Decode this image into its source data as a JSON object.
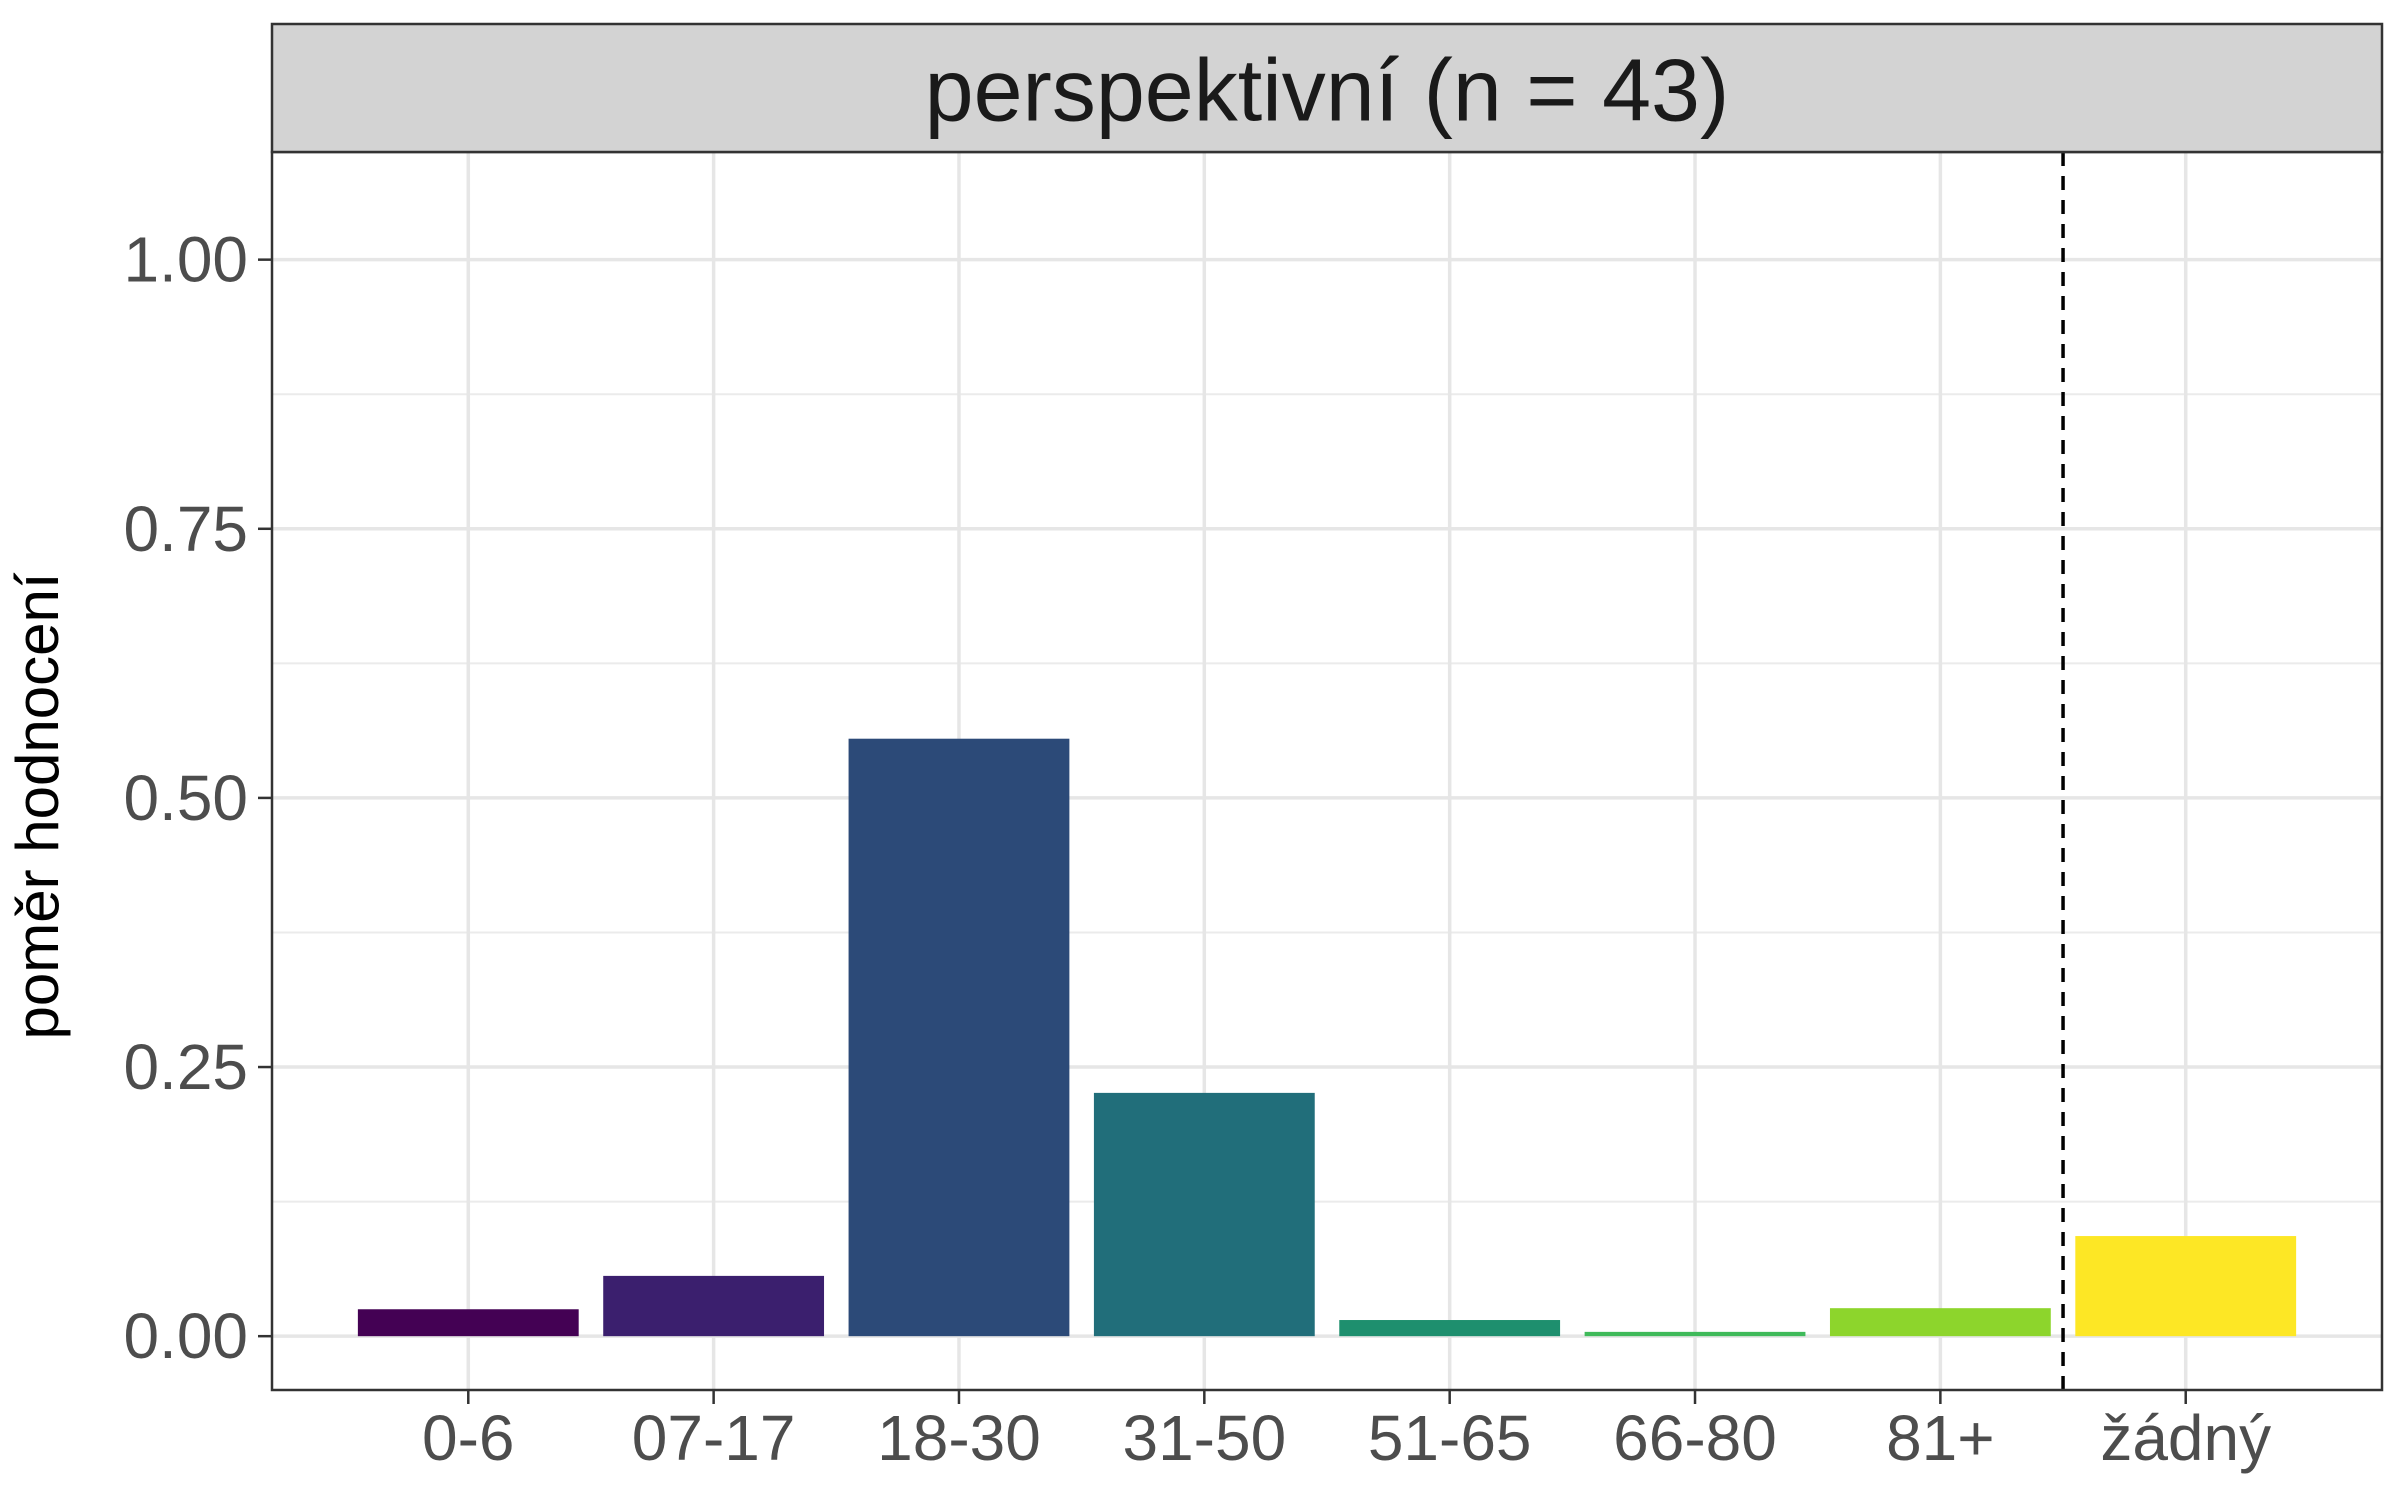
{
  "chart_data": {
    "type": "bar",
    "facet_title": "perspektivní (n = 43)",
    "xlabel": "",
    "ylabel": "poměr hodnocení",
    "categories": [
      "0-6",
      "07-17",
      "18-30",
      "31-50",
      "51-65",
      "66-80",
      "81+",
      "žádný"
    ],
    "values": [
      0.025,
      0.056,
      0.555,
      0.226,
      0.015,
      0.004,
      0.026,
      0.093
    ],
    "colors": [
      "#440154",
      "#3b1f6e",
      "#2c4a78",
      "#216e7a",
      "#1e8f6e",
      "#3fba5a",
      "#8dd52c",
      "#fde725"
    ],
    "ylim": [
      -0.05,
      1.1
    ],
    "yticks": [
      0.0,
      0.25,
      0.5,
      0.75,
      1.0
    ],
    "ytick_labels": [
      "0.00",
      "0.25",
      "0.50",
      "0.75",
      "1.00"
    ],
    "reference_line_between": [
      "81+",
      "žádný"
    ],
    "reference_line_style": "dashed",
    "grid": true,
    "theme": "bw",
    "strip_fill": "#d3d3d3"
  }
}
